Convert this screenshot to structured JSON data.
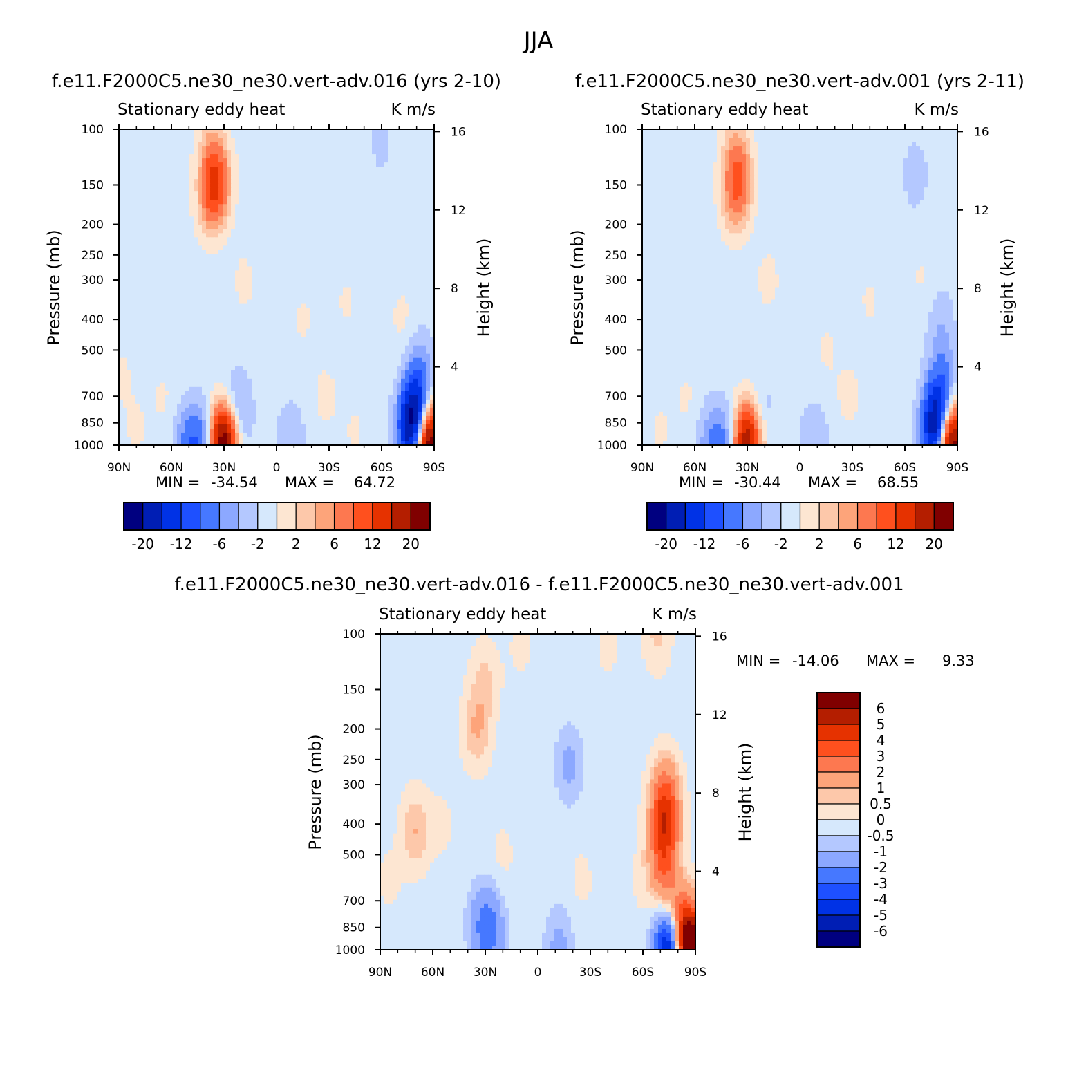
{
  "figure_title": "JJA",
  "chart_data": [
    {
      "type": "heatmap",
      "title": "f.e11.F2000C5.ne30_ne30.vert-adv.016 (yrs 2-10)",
      "subtitle_left": "Stationary eddy heat",
      "subtitle_right": "K m/s",
      "ylabel": "Pressure (mb)",
      "ylabel_right": "Height (km)",
      "x_ticks": [
        "90N",
        "60N",
        "30N",
        "0",
        "30S",
        "60S",
        "90S"
      ],
      "y_ticks": [
        "100",
        "150",
        "200",
        "250",
        "300",
        "400",
        "500",
        "700",
        "850",
        "1000"
      ],
      "y_ticks_right": [
        "16",
        "12",
        "8",
        "4"
      ],
      "stats": {
        "min_label": "MIN =",
        "min": "-34.54",
        "max_label": "MAX =",
        "max": "64.72"
      },
      "colorbar": {
        "orientation": "horizontal",
        "labels": [
          "-20",
          "-12",
          "-6",
          "-2",
          "2",
          "6",
          "12",
          "20"
        ]
      },
      "features": [
        {
          "lat": -34,
          "p": 150,
          "v": 8
        },
        {
          "lat": -38,
          "p": 170,
          "v": 5
        },
        {
          "lat": -36,
          "p": 130,
          "v": 4
        },
        {
          "lat": -38,
          "p": 110,
          "v": 2
        },
        {
          "lat": -18,
          "p": 300,
          "v": 1.5
        },
        {
          "lat": -12,
          "p": 120,
          "v": 1
        },
        {
          "lat": -28,
          "p": 960,
          "v": 10
        },
        {
          "lat": -32,
          "p": 990,
          "v": 18
        },
        {
          "lat": -40,
          "p": 990,
          "v": -8
        },
        {
          "lat": -50,
          "p": 980,
          "v": -6
        },
        {
          "lat": -22,
          "p": 820,
          "v": -4
        },
        {
          "lat": -25,
          "p": 780,
          "v": -2.5
        },
        {
          "lat": 8,
          "p": 970,
          "v": -3
        },
        {
          "lat": 78,
          "p": 900,
          "v": -20
        },
        {
          "lat": 80,
          "p": 750,
          "v": -10
        },
        {
          "lat": 82,
          "p": 550,
          "v": -3
        },
        {
          "lat": 86,
          "p": 980,
          "v": 30
        },
        {
          "lat": 72,
          "p": 400,
          "v": 1.5
        },
        {
          "lat": -69,
          "p": 370,
          "v": -1
        },
        {
          "lat": -7,
          "p": 230,
          "v": -1
        },
        {
          "lat": 60,
          "p": 110,
          "v": -1.5
        },
        {
          "lat": 40,
          "p": 350,
          "v": 1.2
        },
        {
          "lat": 28,
          "p": 700,
          "v": 1.5
        },
        {
          "lat": 45,
          "p": 900,
          "v": 1.2
        },
        {
          "lat": -80,
          "p": 900,
          "v": 1.2
        },
        {
          "lat": -88,
          "p": 600,
          "v": 1.2
        },
        {
          "lat": -65,
          "p": 700,
          "v": 1.2
        },
        {
          "lat": 15,
          "p": 400,
          "v": 1.2
        }
      ]
    },
    {
      "type": "heatmap",
      "title": "f.e11.F2000C5.ne30_ne30.vert-adv.001 (yrs 2-11)",
      "subtitle_left": "Stationary eddy heat",
      "subtitle_right": "K m/s",
      "ylabel": "Pressure (mb)",
      "ylabel_right": "Height (km)",
      "x_ticks": [
        "90N",
        "60N",
        "30N",
        "0",
        "30S",
        "60S",
        "90S"
      ],
      "y_ticks": [
        "100",
        "150",
        "200",
        "250",
        "300",
        "400",
        "500",
        "700",
        "850",
        "1000"
      ],
      "y_ticks_right": [
        "16",
        "12",
        "8",
        "4"
      ],
      "stats": {
        "min_label": "MIN =",
        "min": "-30.44",
        "max_label": "MAX =",
        "max": "68.55"
      },
      "colorbar": {
        "orientation": "horizontal",
        "labels": [
          "-20",
          "-12",
          "-6",
          "-2",
          "2",
          "6",
          "12",
          "20"
        ]
      },
      "features": [
        {
          "lat": -34,
          "p": 150,
          "v": 5
        },
        {
          "lat": -38,
          "p": 170,
          "v": 4
        },
        {
          "lat": -36,
          "p": 130,
          "v": 4
        },
        {
          "lat": -38,
          "p": 110,
          "v": 2
        },
        {
          "lat": -18,
          "p": 300,
          "v": 1.5
        },
        {
          "lat": -28,
          "p": 960,
          "v": 9
        },
        {
          "lat": -32,
          "p": 990,
          "v": 14
        },
        {
          "lat": -40,
          "p": 990,
          "v": -6
        },
        {
          "lat": -50,
          "p": 980,
          "v": -5
        },
        {
          "lat": -22,
          "p": 820,
          "v": -3
        },
        {
          "lat": 8,
          "p": 970,
          "v": -3
        },
        {
          "lat": 78,
          "p": 900,
          "v": -18
        },
        {
          "lat": 80,
          "p": 750,
          "v": -8
        },
        {
          "lat": 82,
          "p": 550,
          "v": -3
        },
        {
          "lat": 86,
          "p": 980,
          "v": 28
        },
        {
          "lat": 66,
          "p": 140,
          "v": -2
        },
        {
          "lat": 80,
          "p": 400,
          "v": -2
        },
        {
          "lat": -75,
          "p": 400,
          "v": -1
        },
        {
          "lat": -40,
          "p": 380,
          "v": -1
        },
        {
          "lat": 40,
          "p": 350,
          "v": 1.2
        },
        {
          "lat": 28,
          "p": 700,
          "v": 1.5
        },
        {
          "lat": -80,
          "p": 900,
          "v": 1.2
        },
        {
          "lat": -65,
          "p": 700,
          "v": 1.2
        },
        {
          "lat": 15,
          "p": 500,
          "v": 1.2
        },
        {
          "lat": 70,
          "p": 300,
          "v": 1.2
        }
      ]
    },
    {
      "type": "heatmap",
      "title": "f.e11.F2000C5.ne30_ne30.vert-adv.016 - f.e11.F2000C5.ne30_ne30.vert-adv.001",
      "subtitle_left": "Stationary eddy heat",
      "subtitle_right": "K m/s",
      "ylabel": "Pressure (mb)",
      "ylabel_right": "Height (km)",
      "x_ticks": [
        "90N",
        "60N",
        "30N",
        "0",
        "30S",
        "60S",
        "90S"
      ],
      "y_ticks": [
        "100",
        "150",
        "200",
        "250",
        "300",
        "400",
        "500",
        "700",
        "850",
        "1000"
      ],
      "y_ticks_right": [
        "16",
        "12",
        "8",
        "4"
      ],
      "stats": {
        "min_label": "MIN =",
        "min": "-14.06",
        "max_label": "MAX =",
        "max": "9.33"
      },
      "colorbar": {
        "orientation": "vertical",
        "labels": [
          "6",
          "5",
          "4",
          "3",
          "2",
          "1",
          "0.5",
          "0",
          "-0.5",
          "-1",
          "-2",
          "-3",
          "-4",
          "-5",
          "-6"
        ]
      },
      "features": [
        {
          "lat": -35,
          "p": 200,
          "v": 1.2
        },
        {
          "lat": -30,
          "p": 140,
          "v": 0.8
        },
        {
          "lat": -70,
          "p": 420,
          "v": 1.2
        },
        {
          "lat": 72,
          "p": 400,
          "v": 3.5
        },
        {
          "lat": 73,
          "p": 320,
          "v": 2.2
        },
        {
          "lat": 72,
          "p": 550,
          "v": 2.5
        },
        {
          "lat": 80,
          "p": 800,
          "v": 2
        },
        {
          "lat": 84,
          "p": 930,
          "v": 3
        },
        {
          "lat": 88,
          "p": 990,
          "v": 6
        },
        {
          "lat": 75,
          "p": 990,
          "v": -6
        },
        {
          "lat": -27,
          "p": 880,
          "v": -1.8
        },
        {
          "lat": -32,
          "p": 830,
          "v": -1.2
        },
        {
          "lat": 18,
          "p": 260,
          "v": -1
        },
        {
          "lat": 12,
          "p": 970,
          "v": -1
        },
        {
          "lat": 68,
          "p": 100,
          "v": 0.8
        },
        {
          "lat": 40,
          "p": 110,
          "v": 0.3
        },
        {
          "lat": -85,
          "p": 600,
          "v": 0.3
        },
        {
          "lat": -55,
          "p": 400,
          "v": 0.3
        },
        {
          "lat": -20,
          "p": 500,
          "v": 0.3
        },
        {
          "lat": 25,
          "p": 600,
          "v": 0.3
        },
        {
          "lat": 60,
          "p": 600,
          "v": 0.3
        },
        {
          "lat": -10,
          "p": 110,
          "v": 0.3
        }
      ]
    }
  ]
}
